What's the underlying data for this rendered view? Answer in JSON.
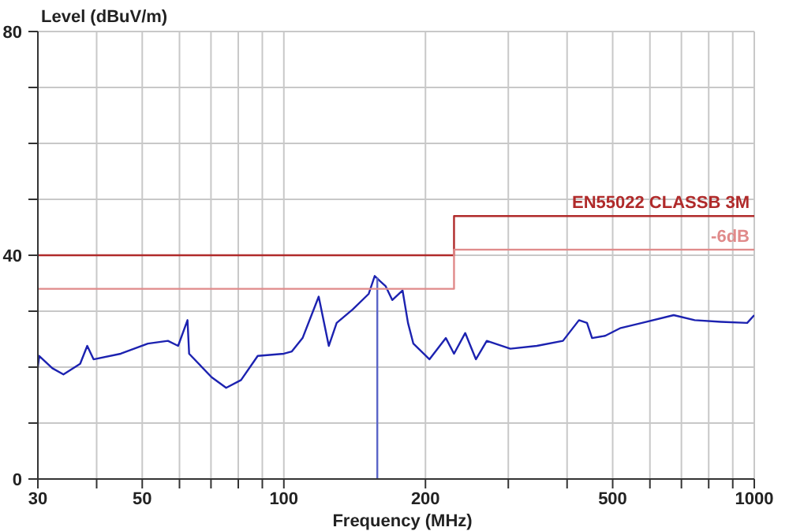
{
  "chart_data": {
    "type": "line",
    "xlabel": "Frequency (MHz)",
    "ylabel": "Level (dBuV/m)",
    "log": "x",
    "grid": true,
    "legend": false,
    "marker": "none",
    "line_style": "solid",
    "xlim": [
      30,
      1000
    ],
    "ylim": [
      0,
      80
    ],
    "xticks": [
      30,
      {
        "value": 40,
        "label": null
      },
      50,
      {
        "value": 60,
        "label": null
      },
      {
        "value": 70,
        "label": null
      },
      {
        "value": 80,
        "label": null
      },
      {
        "value": 90,
        "label": null
      },
      100,
      200,
      {
        "value": 300,
        "label": null
      },
      {
        "value": 400,
        "label": null
      },
      500,
      {
        "value": 600,
        "label": null
      },
      {
        "value": 700,
        "label": null
      },
      {
        "value": 800,
        "label": null
      },
      {
        "value": 900,
        "label": null
      },
      1000
    ],
    "yticks": [
      0,
      {
        "value": 10,
        "label": null
      },
      {
        "value": 20,
        "label": null
      },
      {
        "value": 30,
        "label": null
      },
      40,
      {
        "value": 50,
        "label": null
      },
      {
        "value": 60,
        "label": null
      },
      {
        "value": 70,
        "label": null
      },
      80
    ],
    "series": [
      {
        "color": "#1c22b0",
        "x": [
          30,
          30.2,
          32.2,
          34,
          36.9,
          38.2,
          39.4,
          45,
          51.4,
          56.7,
          59.6,
          62.4,
          62.9,
          70.2,
          75.4,
          81.1,
          88,
          100,
          104,
          109.6,
          118.6,
          124.6,
          129.5,
          140,
          151.5,
          156,
          160,
          164.5,
          170,
          178.8,
          183.6,
          188.5,
          204,
          221,
          230,
          243,
          256,
          270,
          303,
          345,
          392,
          424,
          441,
          452,
          482,
          520,
          577,
          674,
          747,
          849,
          966,
          1000
        ],
        "values": [
          20,
          22,
          19.8,
          18.7,
          20.6,
          23.8,
          21.4,
          22.4,
          24.2,
          24.7,
          23.8,
          28.4,
          22.4,
          18.2,
          16.3,
          17.7,
          22,
          22.4,
          22.8,
          25.2,
          32.6,
          23.8,
          27.9,
          30.3,
          33.1,
          36.3,
          35.4,
          34.5,
          32,
          33.7,
          27.9,
          24.2,
          21.4,
          25.2,
          22.4,
          26.1,
          21.4,
          24.7,
          23.3,
          23.8,
          24.7,
          28.4,
          27.9,
          25.2,
          25.6,
          27,
          27.9,
          29.3,
          28.4,
          28.1,
          27.9,
          29.3
        ]
      },
      {
        "color": "#5a64c8",
        "x": [
          158,
          158
        ],
        "values": [
          0,
          36
        ]
      },
      {
        "name": "EN55022 CLASSB 3M",
        "color": "#b02a2a",
        "x": [
          30,
          230,
          230,
          1000
        ],
        "values": [
          40,
          40,
          47,
          47
        ]
      },
      {
        "name": "-6dB",
        "color": "#e08a8a",
        "x": [
          30,
          230,
          230,
          1000
        ],
        "values": [
          34,
          34,
          41,
          41
        ]
      }
    ]
  }
}
